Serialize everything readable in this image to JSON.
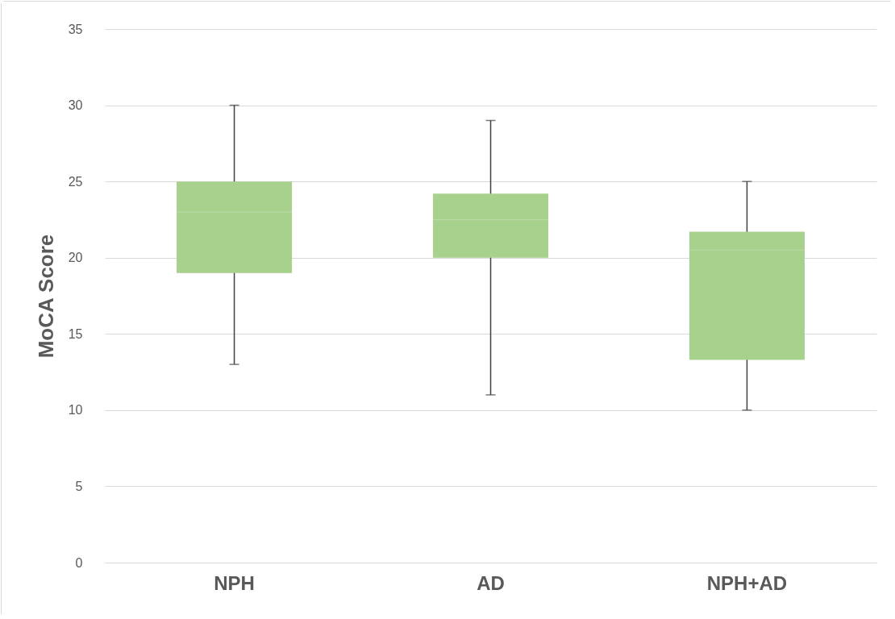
{
  "chart_data": {
    "type": "box",
    "ylabel": "MoCA Score",
    "categories": [
      "NPH",
      "AD",
      "NPH+AD"
    ],
    "ylim": [
      0,
      35
    ],
    "yticks": [
      0,
      5,
      10,
      15,
      20,
      25,
      30,
      35
    ],
    "grid": "y",
    "series": [
      {
        "color": "#a9d18e",
        "boxes": [
          {
            "low": 13,
            "q1": 19,
            "median": 23,
            "q3": 25,
            "high": 30
          },
          {
            "low": 11,
            "q1": 20,
            "median": 22.5,
            "q3": 24.2,
            "high": 29
          },
          {
            "low": 10,
            "q1": 13.3,
            "median": 20.5,
            "q3": 21.7,
            "high": 25
          }
        ]
      }
    ]
  }
}
